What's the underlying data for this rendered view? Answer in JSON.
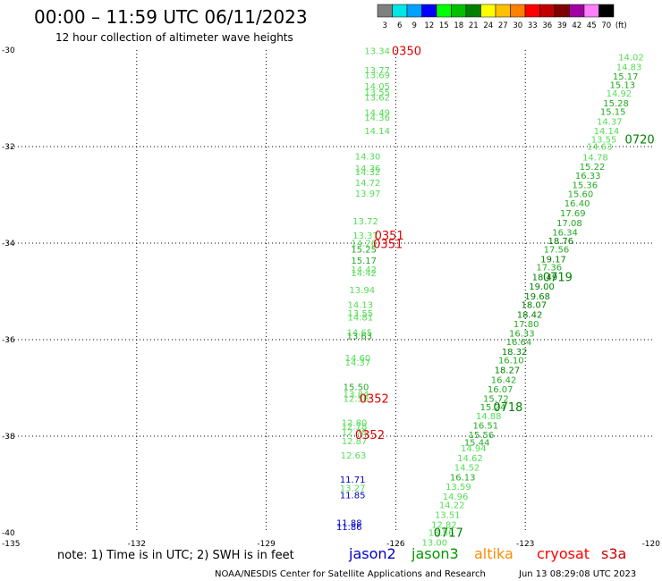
{
  "chart_data": {
    "type": "scatter",
    "title": "00:00 – 11:59 UTC 06/11/2023",
    "subtitle": "12 hour collection of altimeter wave heights",
    "xlim": [
      -135,
      -120
    ],
    "ylim": [
      -40,
      -30
    ],
    "x_ticks": [
      "-135",
      "-132",
      "-129",
      "-126",
      "-123",
      "-120"
    ],
    "y_ticks": [
      "-30",
      "-32",
      "-34",
      "-36",
      "-38",
      "-40"
    ],
    "grid": true,
    "legend_scale": {
      "labels": [
        "3",
        "6",
        "9",
        "12",
        "15",
        "18",
        "21",
        "24",
        "27",
        "30",
        "33",
        "36",
        "39",
        "42",
        "45",
        "70",
        "(ft)"
      ],
      "colors": [
        "#808080",
        "#00e5e5",
        "#00a0ff",
        "#0000ff",
        "#00ff00",
        "#00c000",
        "#008000",
        "#ffff00",
        "#ffc000",
        "#ff8000",
        "#ff0000",
        "#c00000",
        "#800000",
        "#a000a0",
        "#ff80ff",
        "#000000"
      ]
    },
    "satellites": [
      {
        "name": "jason2",
        "color": "#0000cc"
      },
      {
        "name": "jason3",
        "color": "#009900"
      },
      {
        "name": "altika",
        "color": "#ff8c00"
      },
      {
        "name": "cryosat",
        "color": "#ff0000"
      },
      {
        "name": "s3a",
        "color": "#cc0000"
      }
    ],
    "note": "note: 1) Time is in UTC; 2) SWH is in feet",
    "footer_left": "NOAA/NESDIS Center for Satellite Applications and Research",
    "footer_right": "Jun 13 08:29:08 UTC 2023",
    "series": [
      {
        "name": "west track",
        "points": [
          {
            "x": -126.43,
            "y": -30.02,
            "label": "13.34",
            "color": "#55dd55"
          },
          {
            "x": -126.43,
            "y": -30.42,
            "label": "13.77",
            "color": "#55dd55"
          },
          {
            "x": -126.43,
            "y": -30.52,
            "label": "13.69",
            "color": "#55dd55"
          },
          {
            "x": -126.43,
            "y": -30.75,
            "label": "14.05",
            "color": "#55dd55"
          },
          {
            "x": -126.43,
            "y": -30.88,
            "label": "13.55",
            "color": "#55dd55"
          },
          {
            "x": -126.43,
            "y": -30.98,
            "label": "13.62",
            "color": "#55dd55"
          },
          {
            "x": -126.43,
            "y": -31.3,
            "label": "14.49",
            "color": "#55dd55"
          },
          {
            "x": -126.43,
            "y": -31.4,
            "label": "14.36",
            "color": "#55dd55"
          },
          {
            "x": -126.43,
            "y": -31.68,
            "label": "14.14",
            "color": "#55dd55"
          },
          {
            "x": -126.65,
            "y": -32.2,
            "label": "14.30",
            "color": "#55dd55"
          },
          {
            "x": -126.65,
            "y": -32.45,
            "label": "14.36",
            "color": "#55dd55"
          },
          {
            "x": -126.65,
            "y": -32.53,
            "label": "14.32",
            "color": "#55dd55"
          },
          {
            "x": -126.65,
            "y": -32.75,
            "label": "14.72",
            "color": "#55dd55"
          },
          {
            "x": -126.65,
            "y": -32.97,
            "label": "13.97",
            "color": "#55dd55"
          },
          {
            "x": -126.7,
            "y": -33.55,
            "label": "13.72",
            "color": "#55dd55"
          },
          {
            "x": -126.7,
            "y": -33.84,
            "label": "13.37",
            "color": "#55dd55"
          },
          {
            "x": -126.74,
            "y": -34.0,
            "label": "14.26",
            "color": "#55dd55"
          },
          {
            "x": -126.74,
            "y": -34.13,
            "label": "15.25",
            "color": "#22aa22"
          },
          {
            "x": -126.74,
            "y": -34.36,
            "label": "15.17",
            "color": "#22aa22"
          },
          {
            "x": -126.74,
            "y": -34.55,
            "label": "14.42",
            "color": "#55dd55"
          },
          {
            "x": -126.74,
            "y": -34.62,
            "label": "14.42",
            "color": "#55dd55"
          },
          {
            "x": -126.78,
            "y": -34.97,
            "label": "13.94",
            "color": "#55dd55"
          },
          {
            "x": -126.82,
            "y": -35.28,
            "label": "14.13",
            "color": "#55dd55"
          },
          {
            "x": -126.82,
            "y": -35.45,
            "label": "13.55",
            "color": "#55dd55"
          },
          {
            "x": -126.82,
            "y": -35.54,
            "label": "14.81",
            "color": "#55dd55"
          },
          {
            "x": -126.84,
            "y": -35.85,
            "label": "14.65",
            "color": "#55dd55"
          },
          {
            "x": -126.84,
            "y": -35.93,
            "label": "13.63",
            "color": "#22aa22"
          },
          {
            "x": -126.88,
            "y": -36.38,
            "label": "14.60",
            "color": "#55dd55"
          },
          {
            "x": -126.88,
            "y": -36.47,
            "label": "14.37",
            "color": "#55dd55"
          },
          {
            "x": -126.92,
            "y": -36.98,
            "label": "15.50",
            "color": "#22aa22"
          },
          {
            "x": -126.92,
            "y": -37.13,
            "label": "13.84",
            "color": "#55dd55"
          },
          {
            "x": -126.92,
            "y": -37.22,
            "label": "12.56",
            "color": "#55dd55"
          },
          {
            "x": -126.96,
            "y": -37.72,
            "label": "12.80",
            "color": "#55dd55"
          },
          {
            "x": -126.96,
            "y": -37.8,
            "label": "12.78",
            "color": "#55dd55"
          },
          {
            "x": -126.96,
            "y": -37.92,
            "label": "12.78",
            "color": "#55dd55"
          },
          {
            "x": -126.96,
            "y": -38.1,
            "label": "12.87",
            "color": "#55dd55"
          },
          {
            "x": -126.98,
            "y": -38.4,
            "label": "12.63",
            "color": "#55dd55"
          },
          {
            "x": -127.0,
            "y": -38.9,
            "label": "11.71",
            "color": "#0000cc"
          },
          {
            "x": -127.0,
            "y": -39.07,
            "label": "13.27",
            "color": "#55dd55"
          },
          {
            "x": -127.0,
            "y": -39.22,
            "label": "11.85",
            "color": "#0000cc"
          },
          {
            "x": -127.08,
            "y": -39.8,
            "label": "11.88",
            "color": "#0000cc"
          },
          {
            "x": -127.08,
            "y": -39.88,
            "label": "11.86",
            "color": "#0000cc"
          }
        ]
      },
      {
        "name": "east track",
        "points": [
          {
            "x": -120.55,
            "y": -30.15,
            "label": "14.02",
            "color": "#55dd55"
          },
          {
            "x": -120.6,
            "y": -30.35,
            "label": "14.83",
            "color": "#55dd55"
          },
          {
            "x": -120.68,
            "y": -30.55,
            "label": "15.17",
            "color": "#22aa22"
          },
          {
            "x": -120.75,
            "y": -30.72,
            "label": "15.13",
            "color": "#22aa22"
          },
          {
            "x": -120.83,
            "y": -30.9,
            "label": "14.92",
            "color": "#55dd55"
          },
          {
            "x": -120.9,
            "y": -31.1,
            "label": "15.28",
            "color": "#22aa22"
          },
          {
            "x": -120.97,
            "y": -31.28,
            "label": "15.15",
            "color": "#22aa22"
          },
          {
            "x": -121.05,
            "y": -31.48,
            "label": "14.37",
            "color": "#55dd55"
          },
          {
            "x": -121.12,
            "y": -31.68,
            "label": "14.14",
            "color": "#55dd55"
          },
          {
            "x": -121.18,
            "y": -31.85,
            "label": "13.55",
            "color": "#55dd55"
          },
          {
            "x": -121.28,
            "y": -32.0,
            "label": "14.63",
            "color": "#55dd55"
          },
          {
            "x": -121.38,
            "y": -32.22,
            "label": "14.78",
            "color": "#55dd55"
          },
          {
            "x": -121.45,
            "y": -32.42,
            "label": "15.22",
            "color": "#22aa22"
          },
          {
            "x": -121.55,
            "y": -32.6,
            "label": "16.33",
            "color": "#22aa22"
          },
          {
            "x": -121.62,
            "y": -32.8,
            "label": "15.36",
            "color": "#22aa22"
          },
          {
            "x": -121.72,
            "y": -32.98,
            "label": "15.60",
            "color": "#22aa22"
          },
          {
            "x": -121.8,
            "y": -33.18,
            "label": "16.40",
            "color": "#22aa22"
          },
          {
            "x": -121.9,
            "y": -33.38,
            "label": "17.69",
            "color": "#22aa22"
          },
          {
            "x": -121.98,
            "y": -33.58,
            "label": "17.08",
            "color": "#22aa22"
          },
          {
            "x": -122.08,
            "y": -33.78,
            "label": "16.34",
            "color": "#22aa22"
          },
          {
            "x": -122.18,
            "y": -33.95,
            "label": "18.76",
            "color": "#008000"
          },
          {
            "x": -122.28,
            "y": -34.13,
            "label": "17.56",
            "color": "#22aa22"
          },
          {
            "x": -122.35,
            "y": -34.33,
            "label": "19.17",
            "color": "#008000"
          },
          {
            "x": -122.45,
            "y": -34.5,
            "label": "17.36",
            "color": "#22aa22"
          },
          {
            "x": -122.55,
            "y": -34.7,
            "label": "18.49",
            "color": "#008000"
          },
          {
            "x": -122.62,
            "y": -34.9,
            "label": "19.00",
            "color": "#008000"
          },
          {
            "x": -122.72,
            "y": -35.1,
            "label": "19.68",
            "color": "#008000"
          },
          {
            "x": -122.8,
            "y": -35.28,
            "label": "18.07",
            "color": "#008000"
          },
          {
            "x": -122.9,
            "y": -35.48,
            "label": "18.42",
            "color": "#008000"
          },
          {
            "x": -122.98,
            "y": -35.68,
            "label": "17.80",
            "color": "#22aa22"
          },
          {
            "x": -123.08,
            "y": -35.87,
            "label": "16.33",
            "color": "#22aa22"
          },
          {
            "x": -123.15,
            "y": -36.05,
            "label": "16.64",
            "color": "#22aa22"
          },
          {
            "x": -123.25,
            "y": -36.25,
            "label": "18.32",
            "color": "#008000"
          },
          {
            "x": -123.33,
            "y": -36.43,
            "label": "16.10",
            "color": "#22aa22"
          },
          {
            "x": -123.42,
            "y": -36.63,
            "label": "18.27",
            "color": "#008000"
          },
          {
            "x": -123.5,
            "y": -36.83,
            "label": "16.42",
            "color": "#22aa22"
          },
          {
            "x": -123.58,
            "y": -37.03,
            "label": "16.07",
            "color": "#22aa22"
          },
          {
            "x": -123.68,
            "y": -37.22,
            "label": "15.72",
            "color": "#22aa22"
          },
          {
            "x": -123.75,
            "y": -37.4,
            "label": "15.24",
            "color": "#22aa22"
          },
          {
            "x": -123.85,
            "y": -37.58,
            "label": "14.88",
            "color": "#55dd55"
          },
          {
            "x": -123.92,
            "y": -37.78,
            "label": "16.51",
            "color": "#22aa22"
          },
          {
            "x": -124.02,
            "y": -37.97,
            "label": "15.56",
            "color": "#22aa22"
          },
          {
            "x": -124.12,
            "y": -38.13,
            "label": "15.44",
            "color": "#22aa22"
          },
          {
            "x": -124.2,
            "y": -38.25,
            "label": "14.94",
            "color": "#55dd55"
          },
          {
            "x": -124.28,
            "y": -38.45,
            "label": "14.62",
            "color": "#55dd55"
          },
          {
            "x": -124.35,
            "y": -38.65,
            "label": "14.52",
            "color": "#55dd55"
          },
          {
            "x": -124.45,
            "y": -38.85,
            "label": "16.13",
            "color": "#22aa22"
          },
          {
            "x": -124.55,
            "y": -39.05,
            "label": "13.59",
            "color": "#55dd55"
          },
          {
            "x": -124.62,
            "y": -39.25,
            "label": "14.96",
            "color": "#55dd55"
          },
          {
            "x": -124.7,
            "y": -39.43,
            "label": "14.22",
            "color": "#55dd55"
          },
          {
            "x": -124.8,
            "y": -39.63,
            "label": "13.51",
            "color": "#55dd55"
          },
          {
            "x": -124.88,
            "y": -39.83,
            "label": "12.82",
            "color": "#55dd55"
          },
          {
            "x": -124.95,
            "y": -40.0,
            "label": "13.56",
            "color": "#55dd55"
          },
          {
            "x": -125.1,
            "y": -40.2,
            "label": "13.00",
            "color": "#55dd55"
          }
        ]
      }
    ],
    "time_labels": [
      {
        "x": -125.75,
        "y": -30.02,
        "label": "0350",
        "color": "#dd0000"
      },
      {
        "x": -126.15,
        "y": -33.84,
        "label": "0351",
        "color": "#dd0000"
      },
      {
        "x": -126.18,
        "y": -34.02,
        "label": "0351",
        "color": "#dd0000"
      },
      {
        "x": -126.5,
        "y": -37.22,
        "label": "0352",
        "color": "#dd0000"
      },
      {
        "x": -126.6,
        "y": -37.97,
        "label": "0352",
        "color": "#dd0000"
      },
      {
        "x": -120.35,
        "y": -31.85,
        "label": "0720",
        "color": "#008000"
      },
      {
        "x": -122.25,
        "y": -34.7,
        "label": "0719",
        "color": "#008000"
      },
      {
        "x": -123.4,
        "y": -37.4,
        "label": "0718",
        "color": "#008000"
      },
      {
        "x": -124.78,
        "y": -40.0,
        "label": "0717",
        "color": "#008000"
      }
    ]
  }
}
